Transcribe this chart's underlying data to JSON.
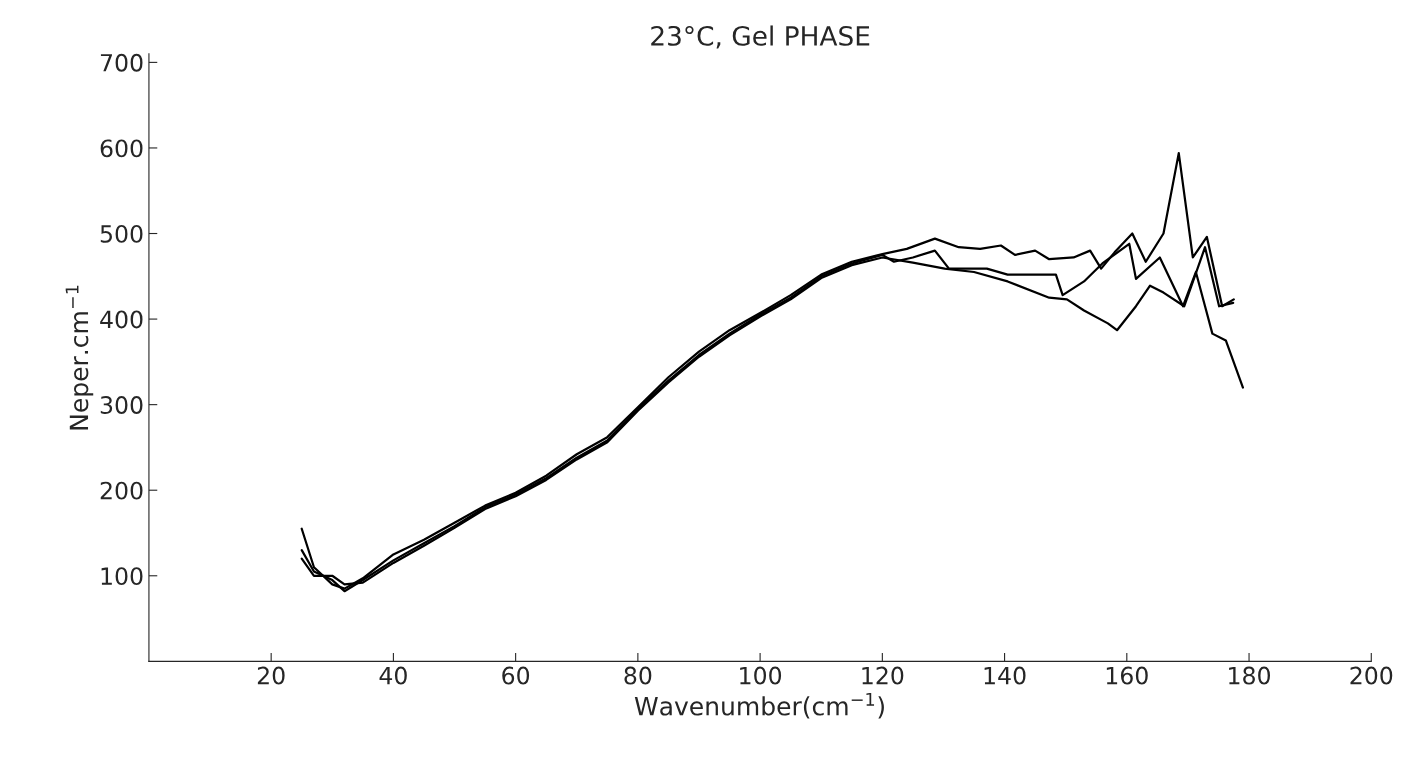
{
  "chart_data": {
    "type": "line",
    "title": "23°C, Gel PHASE",
    "xlabel": "Wavenumber(cm$^{−1}$)",
    "ylabel": "Neper.cm$^{−1}$",
    "xlim": [
      0,
      200
    ],
    "ylim": [
      0,
      710
    ],
    "xticks": [
      20,
      40,
      60,
      80,
      100,
      120,
      140,
      160,
      180,
      200
    ],
    "yticks": [
      100,
      200,
      300,
      400,
      500,
      600,
      700
    ],
    "grid": false,
    "legend": false,
    "marker": "none",
    "line_style": "solid",
    "series": [
      {
        "color": "#000000",
        "x": [
          25,
          27,
          30,
          32,
          35,
          40,
          45,
          50,
          55,
          60,
          65,
          70,
          75,
          80,
          85,
          90,
          95,
          100,
          105,
          110,
          115,
          120,
          124,
          128.6,
          132.5,
          136,
          139.4,
          141.7,
          145,
          147.3,
          151.3,
          154,
          155.8,
          158,
          160.9,
          163.1,
          166,
          168.5,
          170.8,
          173.1,
          175.6,
          177.5
        ],
        "values": [
          155,
          110,
          90,
          85,
          97,
          125,
          142,
          162,
          182,
          197,
          217,
          242,
          262,
          297,
          332,
          362,
          387,
          407,
          428,
          452,
          467,
          476,
          482,
          494,
          484,
          482,
          486,
          475,
          480,
          470,
          472,
          480,
          459,
          478,
          500,
          467,
          500,
          594,
          472,
          496,
          415,
          423
        ]
      },
      {
        "color": "#000000",
        "x": [
          25,
          27,
          30,
          32,
          35,
          40,
          45,
          50,
          55,
          60,
          65,
          70,
          75,
          80,
          85,
          90,
          95,
          100,
          105,
          110,
          115,
          120,
          121.9,
          125,
          128.6,
          130.9,
          137.1,
          140.5,
          148.4,
          149.5,
          153,
          156,
          160.4,
          161.5,
          165.4,
          169.2,
          171.3,
          172.8,
          174,
          176.2,
          179
        ],
        "values": [
          130,
          105,
          95,
          82,
          95,
          118,
          138,
          158,
          180,
          195,
          214,
          238,
          258,
          295,
          328,
          358,
          383,
          405,
          425,
          450,
          465,
          475,
          467,
          472,
          480,
          459,
          459,
          452,
          452,
          428,
          444,
          465,
          488,
          447,
          472,
          415,
          455,
          415,
          383,
          375,
          320
        ]
      },
      {
        "color": "#000000",
        "x": [
          25,
          27,
          30,
          32,
          35,
          40,
          45,
          50,
          55,
          60,
          65,
          70,
          75,
          80,
          85,
          90,
          95,
          100,
          105,
          110,
          115,
          120,
          125,
          130.2,
          135,
          140.5,
          147.3,
          150.2,
          153,
          156.9,
          158.4,
          161.5,
          163.8,
          166,
          169.4,
          172.8,
          175.1,
          177.4
        ],
        "values": [
          120,
          100,
          100,
          90,
          92,
          115,
          135,
          156,
          178,
          193,
          212,
          236,
          256,
          293,
          326,
          356,
          381,
          403,
          423,
          448,
          463,
          472,
          466,
          459,
          455,
          444,
          425,
          423,
          410,
          395,
          387,
          415,
          439,
          431,
          415,
          484,
          415,
          419
        ]
      }
    ]
  }
}
